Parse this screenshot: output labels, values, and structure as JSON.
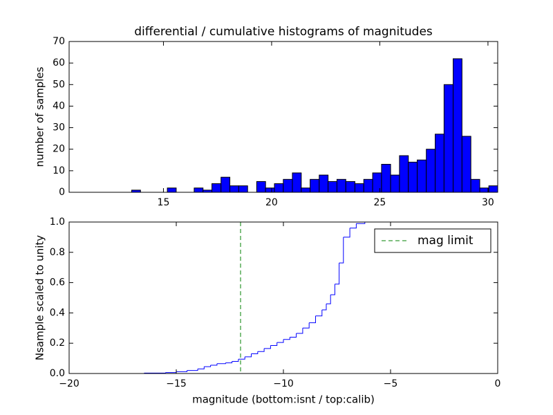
{
  "chart_data": [
    {
      "type": "histogram",
      "title": "differential / cumulative histograms of magnitudes",
      "ylabel": "number of samples",
      "color": "#0000ff",
      "bins": [
        10.64,
        11.05,
        11.47,
        11.88,
        12.29,
        12.7,
        13.12,
        13.53,
        13.94,
        14.35,
        14.77,
        15.18,
        15.59,
        16.01,
        16.42,
        16.83,
        17.24,
        17.66,
        18.07,
        18.48,
        18.89,
        19.31,
        19.72,
        20.13,
        20.54,
        20.96,
        21.37,
        21.78,
        22.2,
        22.61,
        23.02,
        23.43,
        23.85,
        24.26,
        24.67,
        25.08,
        25.5,
        25.91,
        26.32,
        26.73,
        27.15,
        27.56,
        27.97,
        28.39,
        28.8,
        29.21,
        29.62,
        30.04,
        30.45
      ],
      "values": [
        0,
        0,
        0,
        0,
        0,
        0,
        0,
        1,
        0,
        0,
        0,
        2,
        0,
        0,
        2,
        1,
        4,
        7,
        3,
        3,
        0,
        5,
        2,
        4,
        6,
        9,
        2,
        6,
        8,
        5,
        6,
        5,
        4,
        6,
        9,
        13,
        8,
        17,
        14,
        15,
        20,
        27,
        50,
        62,
        26,
        6,
        2,
        3
      ],
      "xlim": [
        10.64,
        30.45
      ],
      "xticks": [
        15,
        20,
        25,
        30
      ],
      "ylim": [
        0,
        70
      ],
      "yticks": [
        0,
        10,
        20,
        30,
        40,
        50,
        60,
        70
      ]
    },
    {
      "type": "line",
      "step": "post",
      "xlabel": "magnitude (bottom:isnt / top:calib)",
      "ylabel": "Nsample scaled to unity",
      "color": "#0000ff",
      "x": [
        -20,
        -16.5,
        -15.5,
        -15,
        -14.5,
        -14,
        -13.7,
        -13.4,
        -13.1,
        -12.7,
        -12.4,
        -12.1,
        -11.8,
        -11.5,
        -11.2,
        -10.9,
        -10.6,
        -10.3,
        -10,
        -9.7,
        -9.4,
        -9.1,
        -8.8,
        -8.5,
        -8.2,
        -8.0,
        -7.8,
        -7.6,
        -7.4,
        -7.2,
        -6.9,
        -6.6,
        -6.2,
        0,
        0
      ],
      "values": [
        0,
        0.003,
        0.006,
        0.012,
        0.02,
        0.03,
        0.045,
        0.055,
        0.065,
        0.07,
        0.08,
        0.095,
        0.11,
        0.13,
        0.145,
        0.165,
        0.185,
        0.205,
        0.225,
        0.24,
        0.265,
        0.3,
        0.335,
        0.38,
        0.42,
        0.46,
        0.52,
        0.59,
        0.73,
        0.9,
        0.96,
        0.99,
        1.0,
        1.0,
        0
      ],
      "vlines": [
        {
          "name": "mag limit",
          "x": -12,
          "color": "#008000",
          "style": "dashed"
        }
      ],
      "legend": "upper right",
      "xlim": [
        -20,
        0
      ],
      "xticks": [
        {
          "value": -20,
          "label": "−20"
        },
        {
          "value": -15,
          "label": "−15"
        },
        {
          "value": -10,
          "label": "−10"
        },
        {
          "value": -5,
          "label": "−5"
        },
        0
      ],
      "ylim": [
        0,
        1
      ],
      "yticks": [
        {
          "value": 0,
          "label": "0.0"
        },
        0.2,
        0.4,
        0.6,
        0.8,
        {
          "value": 1,
          "label": "1.0"
        }
      ]
    }
  ]
}
